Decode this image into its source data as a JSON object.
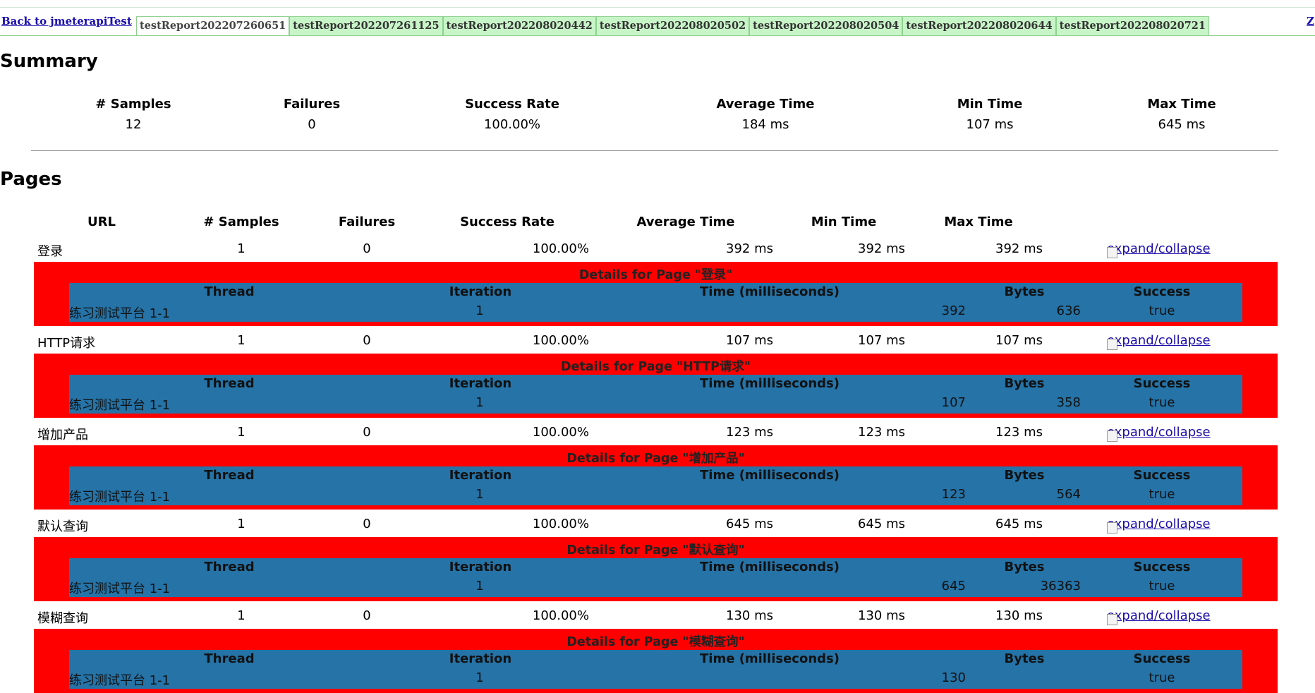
{
  "nav": {
    "back_label": "Back to jmeterapiTest",
    "tabs": [
      {
        "label": "testReport202207260651",
        "active": true
      },
      {
        "label": "testReport202207261125",
        "active": false
      },
      {
        "label": "testReport202208020442",
        "active": false
      },
      {
        "label": "testReport202208020502",
        "active": false
      },
      {
        "label": "testReport202208020504",
        "active": false
      },
      {
        "label": "testReport202208020644",
        "active": false
      },
      {
        "label": "testReport202208020721",
        "active": false
      }
    ],
    "edge_link": "Z"
  },
  "summary": {
    "title": "Summary",
    "headers": [
      "# Samples",
      "Failures",
      "Success Rate",
      "Average Time",
      "Min Time",
      "Max Time"
    ],
    "values": [
      "12",
      "0",
      "100.00%",
      "184 ms",
      "107 ms",
      "645 ms"
    ]
  },
  "pages": {
    "title": "Pages",
    "headers": [
      "URL",
      "# Samples",
      "Failures",
      "Success Rate",
      "Average Time",
      "Min Time",
      "Max Time"
    ],
    "toggle_label": "expand/collapse",
    "detail_headers": [
      "Thread",
      "Iteration",
      "Time (milliseconds)",
      "Bytes",
      "Success"
    ],
    "rows": [
      {
        "url": "登录",
        "samples": "1",
        "failures": "0",
        "success_rate": "100.00%",
        "avg": "392 ms",
        "min": "392 ms",
        "max": "392 ms",
        "detail_title": "Details for Page \"登录\"",
        "detail": {
          "thread": "练习测试平台 1-1",
          "iteration": "1",
          "time": "392",
          "bytes": "636",
          "success": "true"
        }
      },
      {
        "url": "HTTP请求",
        "samples": "1",
        "failures": "0",
        "success_rate": "100.00%",
        "avg": "107 ms",
        "min": "107 ms",
        "max": "107 ms",
        "detail_title": "Details for Page \"HTTP请求\"",
        "detail": {
          "thread": "练习测试平台 1-1",
          "iteration": "1",
          "time": "107",
          "bytes": "358",
          "success": "true"
        }
      },
      {
        "url": "增加产品",
        "samples": "1",
        "failures": "0",
        "success_rate": "100.00%",
        "avg": "123 ms",
        "min": "123 ms",
        "max": "123 ms",
        "detail_title": "Details for Page \"增加产品\"",
        "detail": {
          "thread": "练习测试平台 1-1",
          "iteration": "1",
          "time": "123",
          "bytes": "564",
          "success": "true"
        }
      },
      {
        "url": "默认查询",
        "samples": "1",
        "failures": "0",
        "success_rate": "100.00%",
        "avg": "645 ms",
        "min": "645 ms",
        "max": "645 ms",
        "detail_title": "Details for Page \"默认查询\"",
        "detail": {
          "thread": "练习测试平台 1-1",
          "iteration": "1",
          "time": "645",
          "bytes": "36363",
          "success": "true"
        }
      },
      {
        "url": "模糊查询",
        "samples": "1",
        "failures": "0",
        "success_rate": "100.00%",
        "avg": "130 ms",
        "min": "130 ms",
        "max": "130 ms",
        "detail_title": "Details for Page \"模糊查询\"",
        "detail": {
          "thread": "练习测试平台 1-1",
          "iteration": "1",
          "time": "130",
          "bytes": "",
          "success": "true"
        }
      }
    ]
  }
}
